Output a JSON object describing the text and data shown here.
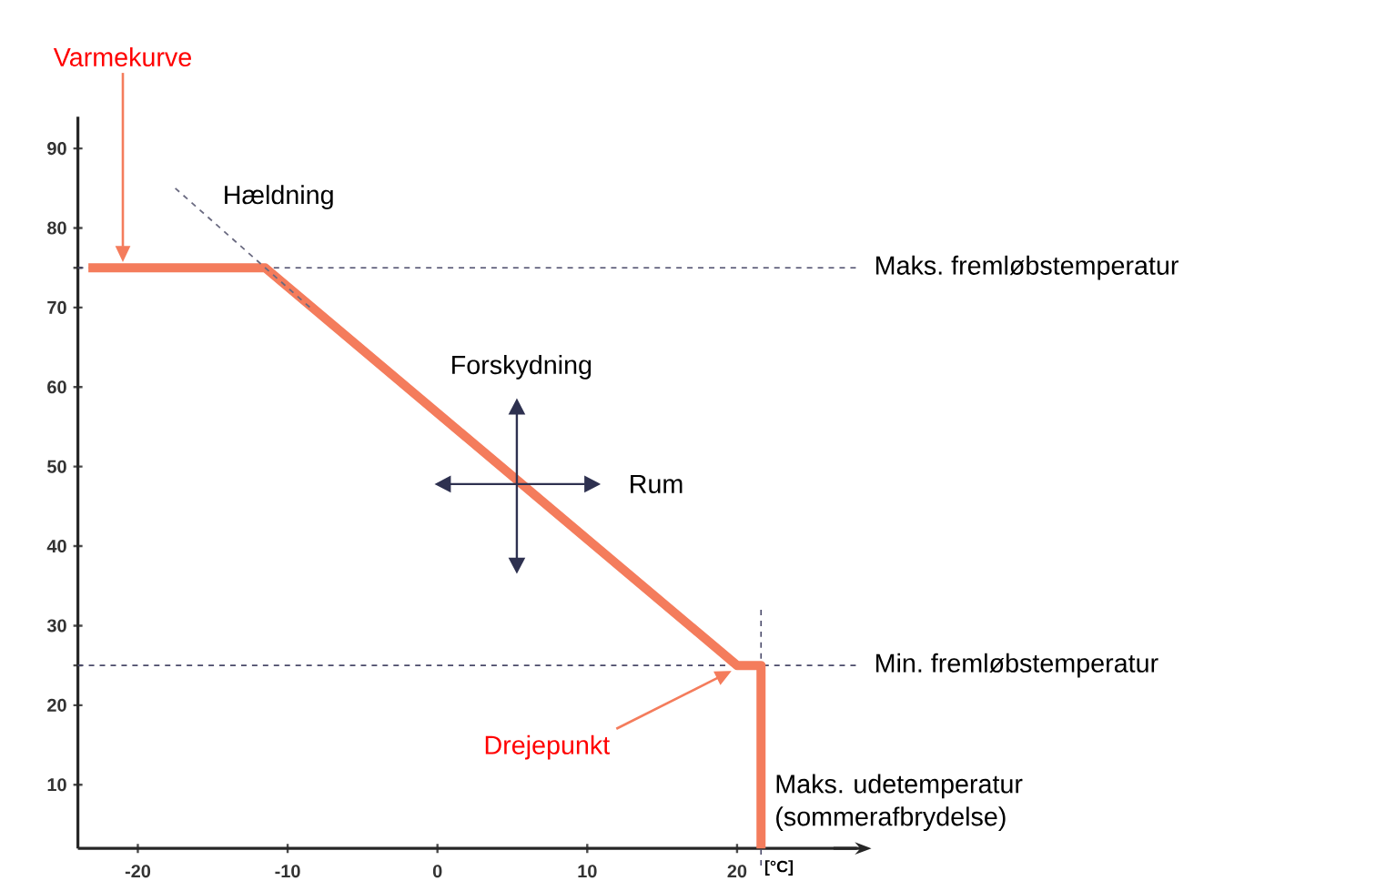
{
  "chart_data": {
    "type": "line",
    "xlabel": "[°C]",
    "xlim": [
      -24,
      28
    ],
    "ylim": [
      2,
      94
    ],
    "xticks": [
      -20,
      -10,
      0,
      10,
      20
    ],
    "yticks": [
      10,
      20,
      {
        "value": 25,
        "label": null
      },
      30,
      40,
      50,
      60,
      70,
      {
        "value": 75,
        "label": null
      },
      80,
      90
    ],
    "grid": false,
    "series": [
      {
        "color": "#f47c5c",
        "x": [
          -23.3,
          -11.5,
          20,
          21.6,
          21.6
        ],
        "values": [
          75,
          75,
          25,
          25,
          2
        ]
      },
      {
        "color": "#6a6a80",
        "line_style": "dashed",
        "x": [
          -17.5,
          -8.5
        ],
        "values": [
          85,
          70
        ]
      }
    ],
    "ref_lines": [
      {
        "axis": "y",
        "value": 75,
        "label": "Maks. fremløbstemperatur",
        "color": "#4a4a6a",
        "line_style": "dashed"
      },
      {
        "axis": "y",
        "value": 25,
        "label": "Min. fremløbstemperatur",
        "color": "#4a4a6a",
        "line_style": "dashed"
      },
      {
        "axis": "x",
        "value": 21.6,
        "label": "Maks. udetemperatur (sommerafbrydelse)",
        "color": "#4a4a6a",
        "line_style": "dashed"
      }
    ],
    "annotations": [
      "Varmekurve",
      {
        "text": "Hældning",
        "x": -15,
        "y": 82
      },
      "Forskydning",
      "Rum",
      "Drejepunkt"
    ]
  }
}
